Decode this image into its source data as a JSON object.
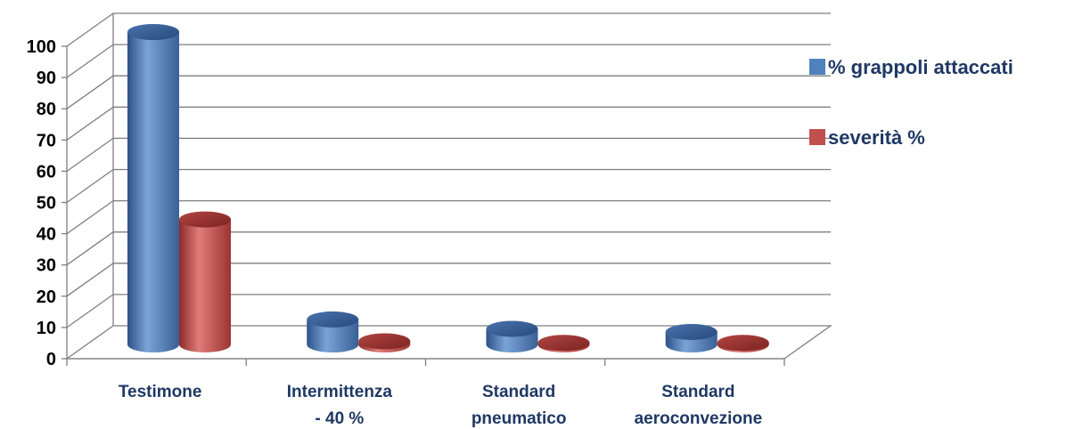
{
  "chart_data": {
    "type": "bar",
    "categories": [
      [
        "Testimone"
      ],
      [
        "Intermittenza",
        "- 40 %"
      ],
      [
        "Standard",
        "pneumatico"
      ],
      [
        "Standard",
        "aeroconvezione"
      ]
    ],
    "series": [
      {
        "name": "% grappoli attaccati",
        "values": [
          100,
          8,
          5,
          4
        ],
        "color": "#4f81bd"
      },
      {
        "name": "severità %",
        "values": [
          40,
          1,
          0.5,
          0.5
        ],
        "color": "#c0504d"
      }
    ],
    "ylim": [
      0,
      100
    ],
    "yticks": [
      0,
      10,
      20,
      30,
      40,
      50,
      60,
      70,
      80,
      90,
      100
    ],
    "grid": true,
    "legend_position": "right",
    "style": "3d-cylinder"
  }
}
